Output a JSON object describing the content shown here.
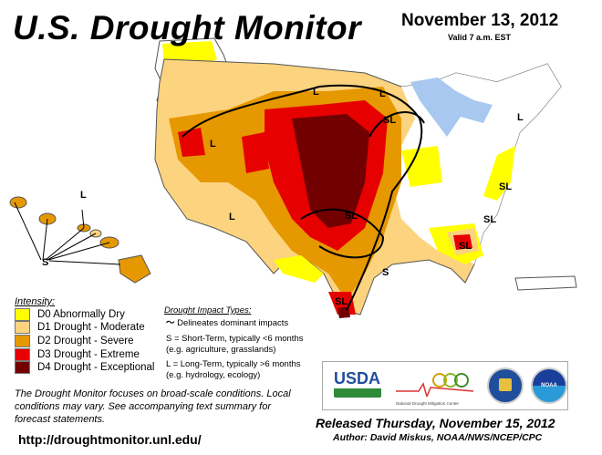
{
  "header": {
    "title": "U.S. Drought Monitor",
    "date": "November 13, 2012",
    "valid": "Valid 7 a.m. EST"
  },
  "legend": {
    "title": "Intensity:",
    "items": [
      {
        "label": "D0 Abnormally Dry",
        "color": "#ffff00"
      },
      {
        "label": "D1 Drought - Moderate",
        "color": "#fcd37f"
      },
      {
        "label": "D2 Drought - Severe",
        "color": "#e69800"
      },
      {
        "label": "D3 Drought - Extreme",
        "color": "#e60000"
      },
      {
        "label": "D4 Drought - Exceptional",
        "color": "#730000"
      }
    ]
  },
  "impacts": {
    "title": "Drought Impact Types:",
    "delineates": "Delineates dominant impacts",
    "short": "S = Short-Term, typically <6 months",
    "short_eg": "(e.g. agriculture, grasslands)",
    "long": "L = Long-Term, typically >6 months",
    "long_eg": "(e.g. hydrology, ecology)"
  },
  "note": "The Drought Monitor focuses on broad-scale conditions. Local conditions may vary. See accompanying text summary for forecast statements.",
  "url": "http://droughtmonitor.unl.edu/",
  "logos": {
    "usda": "USDA",
    "ndmc": "National Drought Mitigation Center",
    "noaa": "NOAA"
  },
  "footer": {
    "released": "Released Thursday, November 15, 2012",
    "author": "Author: David Miskus, NOAA/NWS/NCEP/CPC"
  },
  "map_labels": [
    "L",
    "L",
    "SL",
    "L",
    "L",
    "SL",
    "SL",
    "L",
    "SL",
    "SL",
    "S",
    "SL",
    "L",
    "S"
  ]
}
